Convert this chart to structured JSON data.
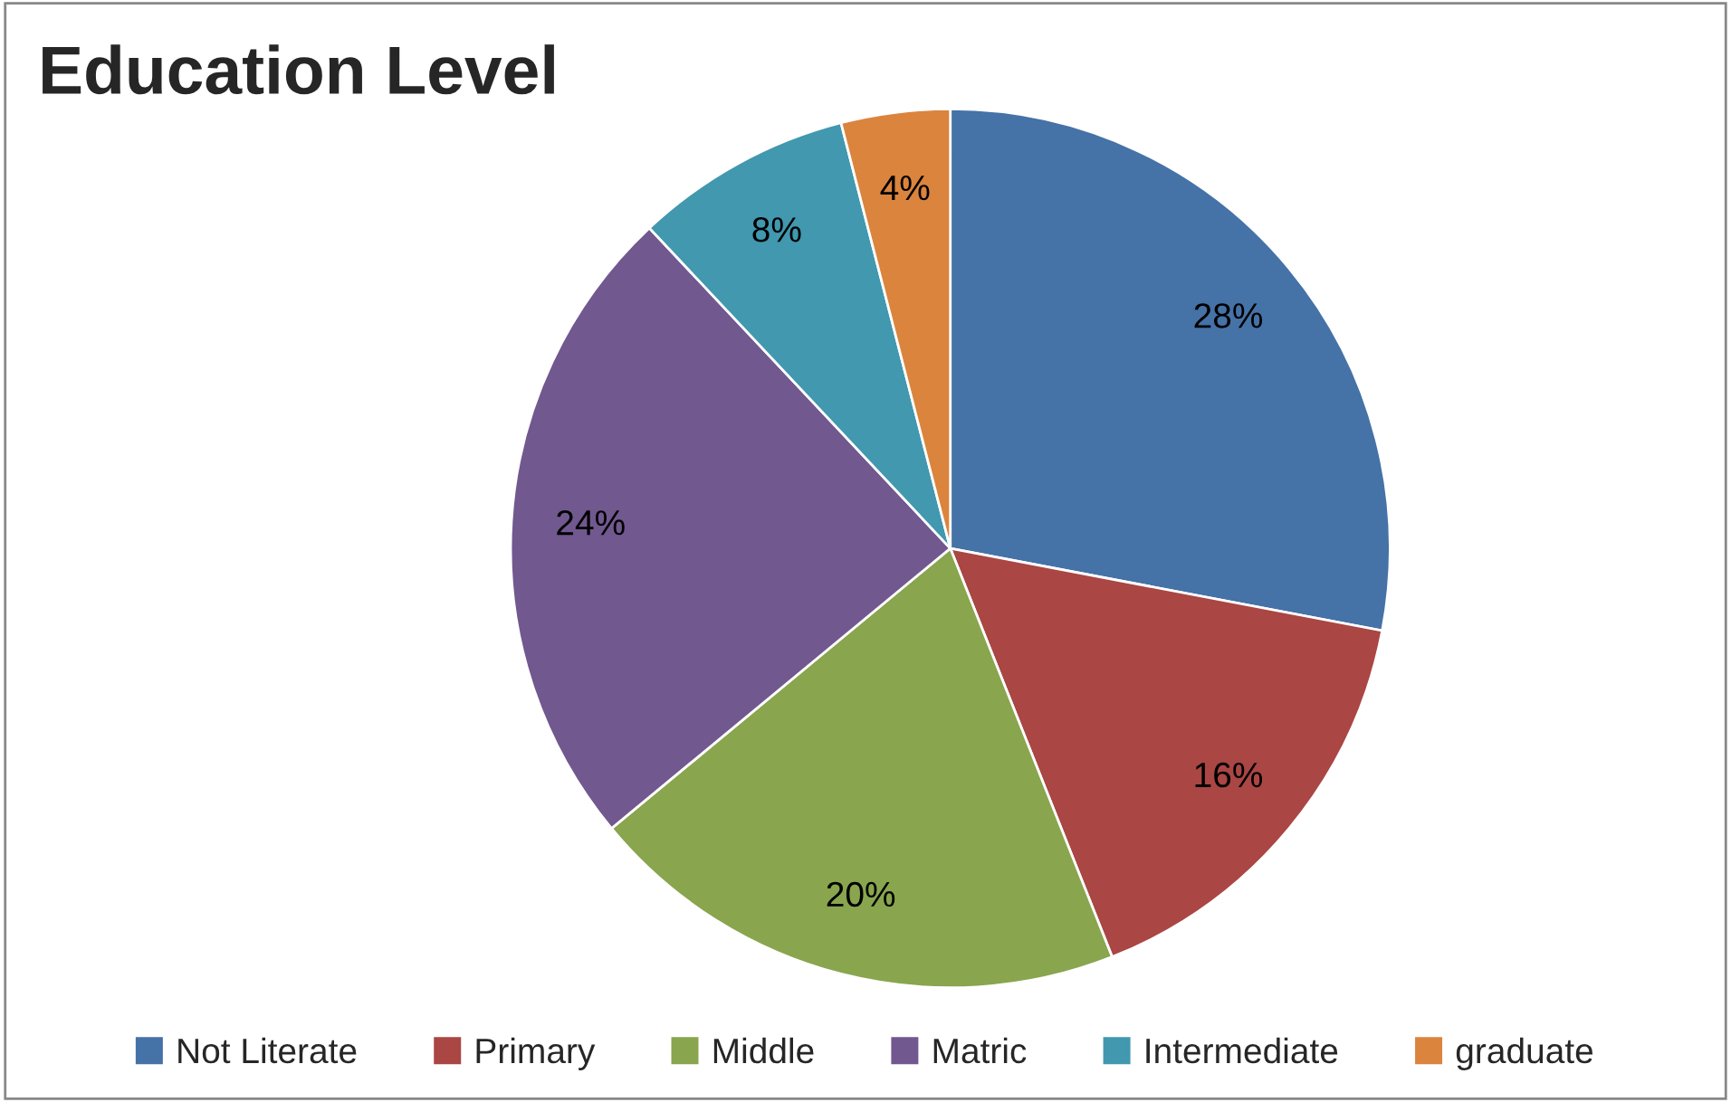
{
  "chart_data": {
    "type": "pie",
    "title": "Education Level",
    "categories": [
      "Not Literate",
      "Primary",
      "Middle",
      "Matric",
      "Intermediate",
      "graduate"
    ],
    "values": [
      28,
      16,
      20,
      24,
      8,
      4
    ],
    "value_labels": [
      "28%",
      "16%",
      "20%",
      "24%",
      "8%",
      "4%"
    ],
    "colors": [
      "#4572a7",
      "#aa4643",
      "#89a54e",
      "#71588f",
      "#4198af",
      "#db843d"
    ],
    "legend": "bottom"
  }
}
